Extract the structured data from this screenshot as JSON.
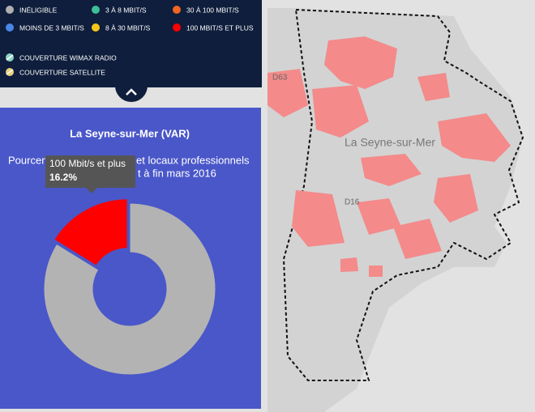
{
  "legend": {
    "items": [
      {
        "label": "INÉLIGIBLE",
        "color": "#b0b0b0"
      },
      {
        "label": "3 À 8 MBIT/S",
        "color": "#3dbf9a"
      },
      {
        "label": "30 À 100 MBIT/S",
        "color": "#f26522"
      },
      {
        "label": "MOINS DE 3 MBIT/S",
        "color": "#4a86e8"
      },
      {
        "label": "8 À 30 MBIT/S",
        "color": "#f5c518"
      },
      {
        "label": "100 MBIT/S ET PLUS",
        "color": "#ff0000"
      }
    ],
    "coverage": [
      "COUVERTURE WIMAX RADIO",
      "COUVERTURE SATELLITE"
    ]
  },
  "panel": {
    "title": "La Seyne-sur-Mer (VAR)",
    "subtitle_fragments": [
      "Pourcen",
      "et locaux professionnels",
      "t à fin mars 2016"
    ]
  },
  "chart_data": {
    "type": "pie",
    "donut": true,
    "slices": [
      {
        "name": "100 Mbit/s et plus",
        "value": 16.2,
        "value_label": "16.2%",
        "color": "#ff0000"
      },
      {
        "name": null,
        "value": 83.8,
        "color": "#b3b3b3"
      }
    ]
  },
  "map": {
    "labels": [
      "La Seyne-sur-Mer",
      "D63",
      "D16"
    ]
  }
}
